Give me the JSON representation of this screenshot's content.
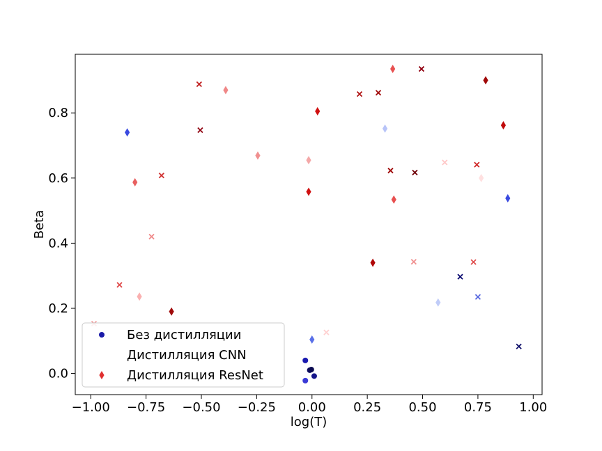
{
  "chart_data": {
    "type": "scatter",
    "xlabel": "log(T)",
    "ylabel": "Beta",
    "xlim": [
      -1.07,
      1.04
    ],
    "ylim": [
      -0.065,
      0.98
    ],
    "x_ticks": [
      -1.0,
      -0.75,
      -0.5,
      -0.25,
      0.0,
      0.25,
      0.5,
      0.75,
      1.0
    ],
    "x_tick_labels": [
      "−1.00",
      "−0.75",
      "−0.50",
      "−0.25",
      "0.00",
      "0.25",
      "0.50",
      "0.75",
      "1.00"
    ],
    "y_ticks": [
      0.0,
      0.2,
      0.4,
      0.6,
      0.8
    ],
    "y_tick_labels": [
      "0.0",
      "0.2",
      "0.4",
      "0.6",
      "0.8"
    ],
    "grid": false,
    "legend_position": "lower-left",
    "legend": [
      {
        "label": "Без дистилляции",
        "marker": "circle",
        "color": "#1a1aa8"
      },
      {
        "label": "Дистилляция CNN",
        "marker": "none",
        "color": "#ffffff"
      },
      {
        "label": "Дистилляция ResNet",
        "marker": "diamond",
        "color": "#e03030"
      }
    ],
    "series": [
      {
        "name": "Без дистилляции",
        "marker": "circle",
        "points": [
          {
            "x": -0.03,
            "y": -0.022,
            "color": "#3a3ad6"
          },
          {
            "x": -0.03,
            "y": 0.04,
            "color": "#1a1ab0"
          },
          {
            "x": -0.01,
            "y": 0.01,
            "color": "#0a0a60"
          },
          {
            "x": -0.003,
            "y": 0.012,
            "color": "#0a0a50"
          },
          {
            "x": 0.01,
            "y": -0.008,
            "color": "#15158a"
          }
        ]
      },
      {
        "name": "Дистилляция CNN",
        "marker": "x",
        "points": [
          {
            "x": -0.985,
            "y": 0.153,
            "color": "#f4a0a0"
          },
          {
            "x": -0.87,
            "y": 0.272,
            "color": "#e05050"
          },
          {
            "x": -0.725,
            "y": 0.42,
            "color": "#f08a8a"
          },
          {
            "x": -0.68,
            "y": 0.608,
            "color": "#d03030"
          },
          {
            "x": -0.51,
            "y": 0.888,
            "color": "#c02020"
          },
          {
            "x": -0.505,
            "y": 0.747,
            "color": "#900010"
          },
          {
            "x": 0.065,
            "y": 0.126,
            "color": "#ffd0d0"
          },
          {
            "x": 0.215,
            "y": 0.858,
            "color": "#b01515"
          },
          {
            "x": 0.3,
            "y": 0.862,
            "color": "#a00a0a"
          },
          {
            "x": 0.355,
            "y": 0.623,
            "color": "#a00a0a"
          },
          {
            "x": 0.465,
            "y": 0.617,
            "color": "#700008"
          },
          {
            "x": 0.46,
            "y": 0.343,
            "color": "#f09090"
          },
          {
            "x": 0.495,
            "y": 0.935,
            "color": "#900010"
          },
          {
            "x": 0.6,
            "y": 0.648,
            "color": "#ffc8c8"
          },
          {
            "x": 0.67,
            "y": 0.297,
            "color": "#0a0a70"
          },
          {
            "x": 0.73,
            "y": 0.342,
            "color": "#e05050"
          },
          {
            "x": 0.745,
            "y": 0.641,
            "color": "#d02828"
          },
          {
            "x": 0.75,
            "y": 0.235,
            "color": "#5a6ae0"
          },
          {
            "x": 0.935,
            "y": 0.083,
            "color": "#10106a"
          }
        ]
      },
      {
        "name": "Дистилляция ResNet",
        "marker": "diamond",
        "points": [
          {
            "x": -0.835,
            "y": 0.74,
            "color": "#3a4ae0"
          },
          {
            "x": -0.8,
            "y": 0.587,
            "color": "#e86060"
          },
          {
            "x": -0.78,
            "y": 0.236,
            "color": "#fab0b0"
          },
          {
            "x": -0.635,
            "y": 0.19,
            "color": "#a00a0a"
          },
          {
            "x": -0.39,
            "y": 0.87,
            "color": "#f08888"
          },
          {
            "x": -0.245,
            "y": 0.669,
            "color": "#f09090"
          },
          {
            "x": -0.015,
            "y": 0.655,
            "color": "#f4a8a8"
          },
          {
            "x": -0.015,
            "y": 0.558,
            "color": "#d01010"
          },
          {
            "x": 0.0,
            "y": 0.104,
            "color": "#5a70e8"
          },
          {
            "x": 0.025,
            "y": 0.805,
            "color": "#d01010"
          },
          {
            "x": 0.275,
            "y": 0.34,
            "color": "#b00808"
          },
          {
            "x": 0.33,
            "y": 0.752,
            "color": "#b8c4f8"
          },
          {
            "x": 0.365,
            "y": 0.935,
            "color": "#e85050"
          },
          {
            "x": 0.37,
            "y": 0.534,
            "color": "#e85050"
          },
          {
            "x": 0.57,
            "y": 0.218,
            "color": "#c0ccf8"
          },
          {
            "x": 0.765,
            "y": 0.6,
            "color": "#ffe0e0"
          },
          {
            "x": 0.785,
            "y": 0.9,
            "color": "#a00808"
          },
          {
            "x": 0.865,
            "y": 0.762,
            "color": "#c00a0a"
          },
          {
            "x": 0.885,
            "y": 0.538,
            "color": "#3a4ae0"
          }
        ]
      }
    ]
  }
}
